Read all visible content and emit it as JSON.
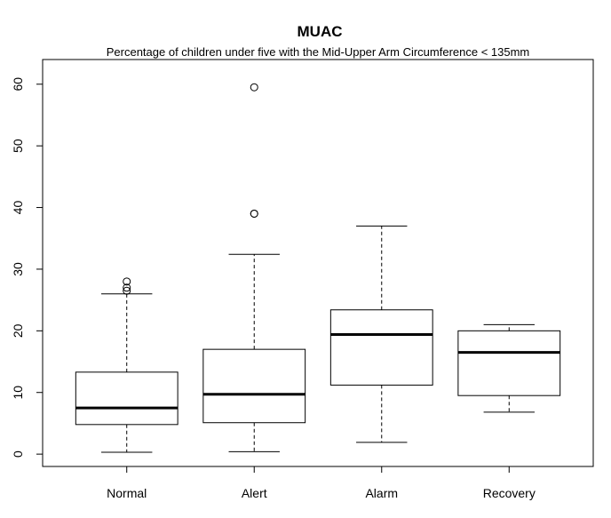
{
  "chart_data": {
    "type": "box",
    "title": "MUAC",
    "subtitle": "Percentage of children under five with the Mid-Upper Arm Circumference  < 135mm",
    "xlabel": "",
    "ylabel": "",
    "ylim": [
      -2,
      64
    ],
    "yticks": [
      0,
      10,
      20,
      30,
      40,
      50,
      60
    ],
    "ytick_labels": [
      "0",
      "10",
      "20",
      "30",
      "40",
      "50",
      "60"
    ],
    "categories": [
      "Normal",
      "Alert",
      "Alarm",
      "Recovery"
    ],
    "boxes": [
      {
        "category": "Normal",
        "whisker_low": 0.3,
        "q1": 4.8,
        "median": 7.5,
        "q3": 13.3,
        "whisker_high": 26.0,
        "outliers": [
          26.5,
          27.0,
          28.0
        ]
      },
      {
        "category": "Alert",
        "whisker_low": 0.4,
        "q1": 5.1,
        "median": 9.7,
        "q3": 17.0,
        "whisker_high": 32.4,
        "outliers": [
          39.0,
          39.0,
          59.5
        ]
      },
      {
        "category": "Alarm",
        "whisker_low": 1.9,
        "q1": 11.2,
        "median": 19.4,
        "q3": 23.4,
        "whisker_high": 37.0,
        "outliers": []
      },
      {
        "category": "Recovery",
        "whisker_low": 6.8,
        "q1": 9.5,
        "median": 16.5,
        "q3": 20.0,
        "whisker_high": 21.0,
        "outliers": []
      }
    ],
    "grid": false,
    "legend": "none"
  }
}
